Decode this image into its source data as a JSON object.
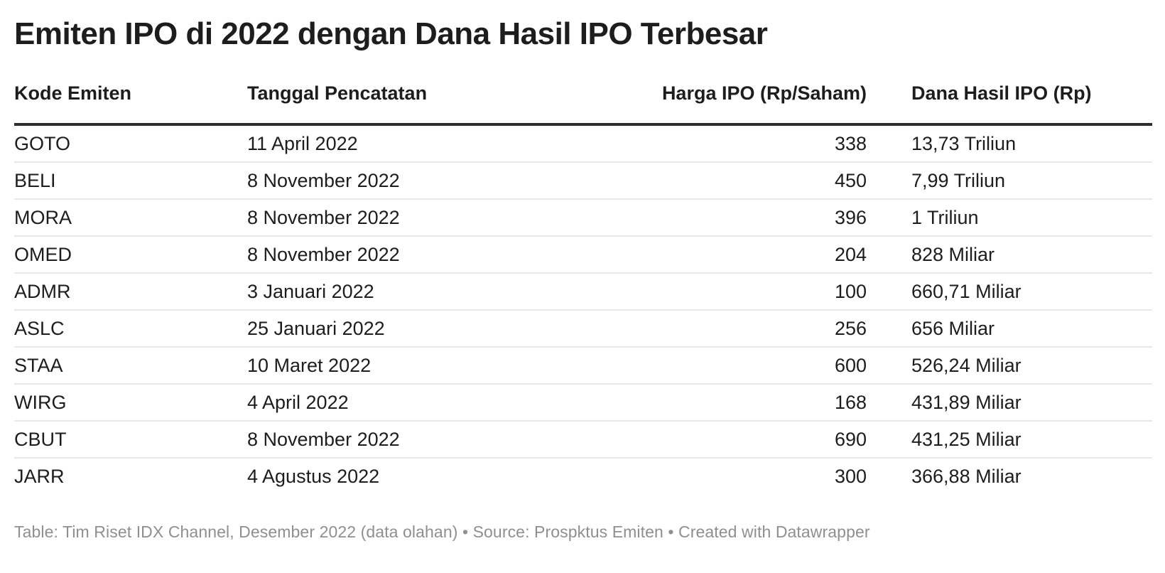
{
  "page_title": "Emiten IPO di 2022 dengan Dana Hasil IPO Terbesar",
  "colors": {
    "background": "#ffffff",
    "text": "#1d1d1d",
    "header_rule": "#2e2e2e",
    "row_divider": "#e8e8e8",
    "footer_text": "#8f8f8f"
  },
  "chart_data": {
    "type": "table",
    "title": "Emiten IPO di 2022 dengan Dana Hasil IPO Terbesar",
    "columns": [
      {
        "label": "Kode Emiten",
        "align": "left"
      },
      {
        "label": "Tanggal Pencatatan",
        "align": "left"
      },
      {
        "label": "Harga IPO (Rp/Saham)",
        "align": "right"
      },
      {
        "label": "Dana Hasil IPO (Rp)",
        "align": "left"
      }
    ],
    "rows": [
      [
        "GOTO",
        "11 April 2022",
        "338",
        "13,73 Triliun"
      ],
      [
        "BELI",
        "8 November 2022",
        "450",
        "7,99 Triliun"
      ],
      [
        "MORA",
        "8 November 2022",
        "396",
        "1 Triliun"
      ],
      [
        "OMED",
        "8 November 2022",
        "204",
        "828 Miliar"
      ],
      [
        "ADMR",
        "3 Januari 2022",
        "100",
        "660,71 Miliar"
      ],
      [
        "ASLC",
        "25 Januari 2022",
        "256",
        "656 Miliar"
      ],
      [
        "STAA",
        "10 Maret 2022",
        "600",
        "526,24 Miliar"
      ],
      [
        "WIRG",
        "4 April 2022",
        "168",
        "431,89 Miliar"
      ],
      [
        "CBUT",
        "8 November 2022",
        "690",
        "431,25 Miliar"
      ],
      [
        "JARR",
        "4 Agustus 2022",
        "300",
        "366,88 Miliar"
      ]
    ],
    "harga_ipo_values": [
      338,
      450,
      396,
      204,
      100,
      256,
      600,
      168,
      690,
      300
    ],
    "dana_hasil_ipo_rp": [
      13730000000000,
      7990000000000,
      1000000000000,
      828000000000,
      660710000000,
      656000000000,
      526240000000,
      431890000000,
      431250000000,
      366880000000
    ]
  },
  "footer": {
    "text": "Table: Tim Riset IDX Channel, Desember 2022 (data olahan) • Source: Prospktus Emiten • Created with Datawrapper"
  }
}
